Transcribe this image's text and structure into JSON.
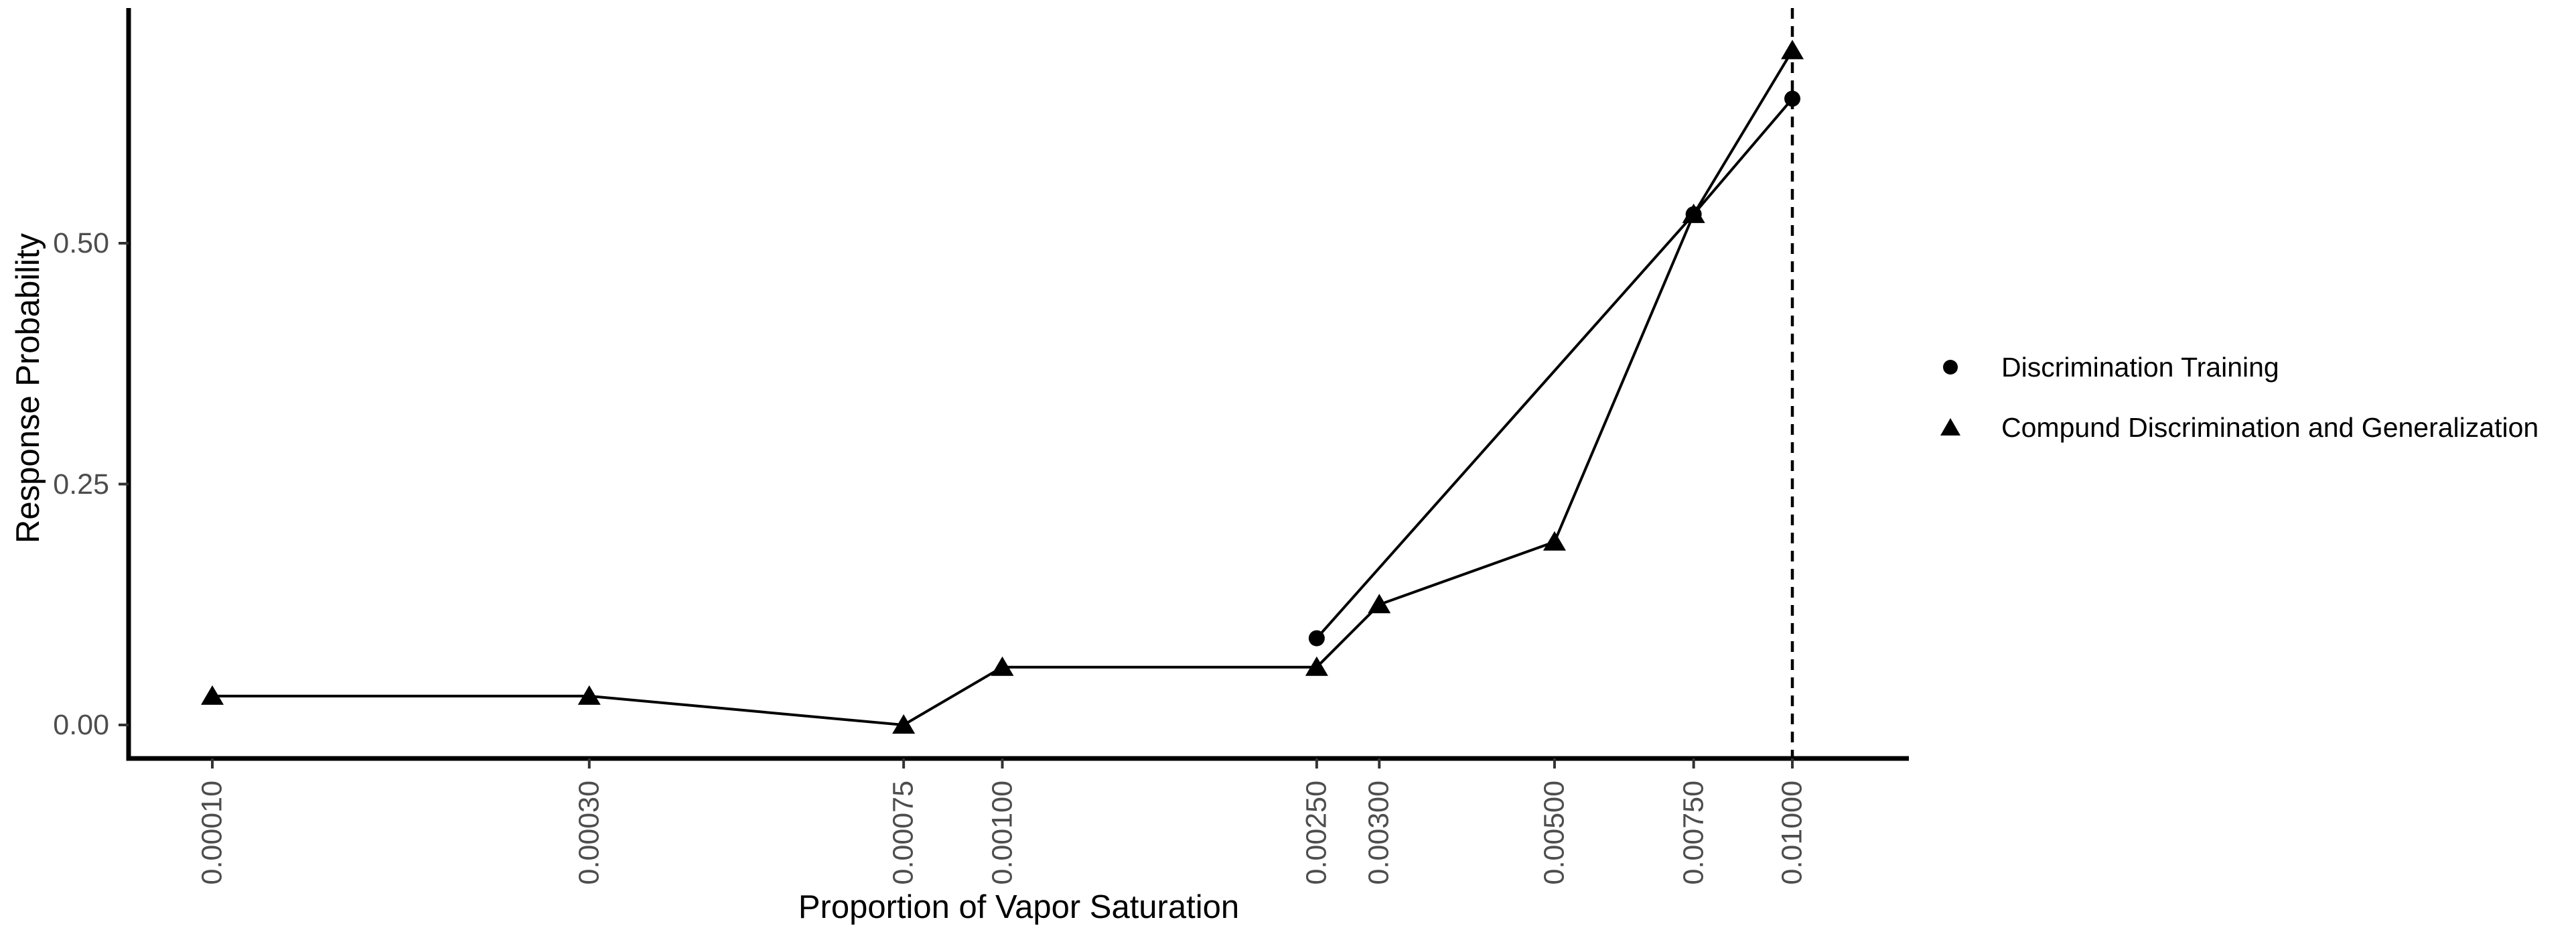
{
  "chart_data": {
    "type": "line",
    "title": "",
    "xlabel": "Proportion of Vapor Saturation",
    "ylabel": "Response Probability",
    "x_scale": "log10",
    "xlim": [
      7.83e-05,
      0.014
    ],
    "ylim": [
      -0.035,
      0.744
    ],
    "grid": "off",
    "legend_position": "right",
    "x_ticks": [
      0.0001,
      0.0003,
      0.00075,
      0.001,
      0.0025,
      0.003,
      0.005,
      0.0075,
      0.01
    ],
    "x_tick_labels": [
      "0.00010",
      "0.00030",
      "0.00075",
      "0.00100",
      "0.00250",
      "0.00300",
      "0.00500",
      "0.00750",
      "0.01000"
    ],
    "y_ticks": [
      0.0,
      0.25,
      0.5
    ],
    "y_tick_labels": [
      "0.00",
      "0.25",
      "0.50"
    ],
    "series": [
      {
        "name": "Discrimination Training",
        "marker": "circle",
        "color": "#000000",
        "points": [
          [
            0.0025,
            0.09
          ],
          [
            0.0075,
            0.53
          ],
          [
            0.01,
            0.65
          ]
        ]
      },
      {
        "name": "Compund Discrimination and Generalization",
        "marker": "triangle",
        "color": "#000000",
        "points": [
          [
            0.0001,
            0.03
          ],
          [
            0.0003,
            0.03
          ],
          [
            0.00075,
            0.0
          ],
          [
            0.001,
            0.06
          ],
          [
            0.0025,
            0.06
          ],
          [
            0.003,
            0.125
          ],
          [
            0.005,
            0.19
          ],
          [
            0.0075,
            0.53
          ],
          [
            0.01,
            0.7
          ]
        ]
      }
    ],
    "reference_line": {
      "x": 0.01,
      "style": "dashed",
      "color": "#000000"
    },
    "colors": {
      "line": "#000000",
      "axis": "#000000",
      "tick_label": "#4d4d4d",
      "background": "#ffffff"
    }
  }
}
